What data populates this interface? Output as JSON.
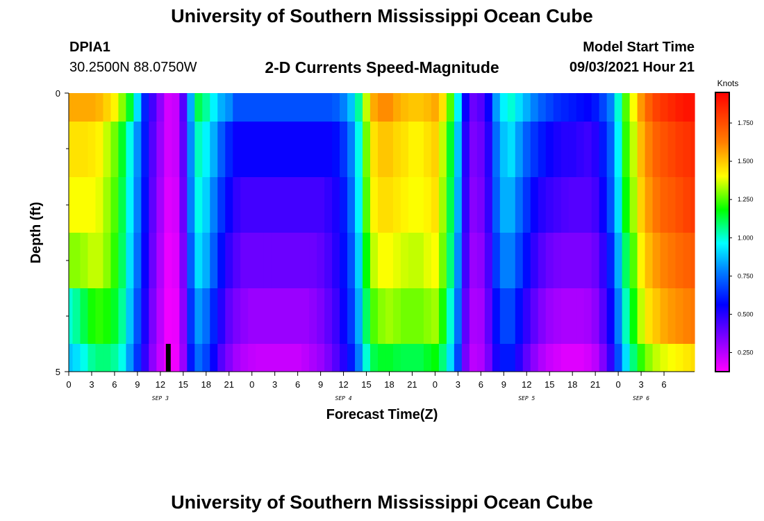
{
  "header": {
    "title": "University of Southern Mississippi Ocean Cube",
    "station_id": "DPIA1",
    "coords": "30.2500N  88.0750W",
    "chart_title": "2-D Currents Speed-Magnitude",
    "model_start_label": "Model Start Time",
    "model_start_value": "09/03/2021 Hour 21"
  },
  "footer": {
    "title": "University of Southern Mississippi Ocean Cube"
  },
  "chart_data": {
    "type": "heatmap",
    "title": "2-D Currents Speed-Magnitude",
    "xlabel": "Forecast Time(Z)",
    "ylabel": "Depth (ft)",
    "y_ticks": [
      "0",
      "5"
    ],
    "ylim": [
      0,
      5
    ],
    "x_tick_labels": [
      "0",
      "3",
      "6",
      "9",
      "12",
      "15",
      "18",
      "21",
      "0",
      "3",
      "6",
      "9",
      "12",
      "15",
      "18",
      "21",
      "0",
      "3",
      "6",
      "9",
      "12",
      "15",
      "18",
      "21",
      "0",
      "3",
      "6"
    ],
    "date_labels": [
      {
        "label": "SEP 3",
        "hour_index": 12
      },
      {
        "label": "SEP 4",
        "hour_index": 36
      },
      {
        "label": "SEP 5",
        "hour_index": 60
      },
      {
        "label": "SEP 6",
        "hour_index": 75
      }
    ],
    "colorbar": {
      "unit": "Knots",
      "min": 0.125,
      "max": 1.95,
      "ticks": [
        "1.750",
        "1.500",
        "1.250",
        "1.000",
        "0.750",
        "0.500",
        "0.250"
      ],
      "tick_values": [
        1.75,
        1.5,
        1.25,
        1.0,
        0.75,
        0.5,
        0.25
      ]
    },
    "model_start_marker_hour": 13,
    "layers": [
      {
        "depth_band": "surface",
        "speed_knots": [
          1.55,
          1.55,
          1.55,
          1.55,
          1.53,
          1.48,
          1.42,
          1.3,
          1.15,
          0.92,
          0.62,
          0.45,
          0.32,
          0.2,
          0.22,
          0.42,
          0.85,
          1.12,
          1.05,
          0.95,
          0.85,
          0.8,
          0.7,
          0.7,
          0.7,
          0.7,
          0.7,
          0.7,
          0.7,
          0.7,
          0.7,
          0.7,
          0.7,
          0.7,
          0.7,
          0.72,
          0.78,
          0.88,
          1.05,
          1.35,
          1.55,
          1.6,
          1.6,
          1.55,
          1.52,
          1.5,
          1.5,
          1.52,
          1.55,
          1.45,
          1.25,
          0.95,
          0.55,
          0.38,
          0.42,
          0.55,
          0.82,
          0.95,
          1.0,
          0.92,
          0.85,
          0.78,
          0.72,
          0.68,
          0.64,
          0.62,
          0.6,
          0.58,
          0.56,
          0.6,
          0.68,
          0.78,
          1.0,
          1.25,
          1.4,
          1.58,
          1.7,
          1.78,
          1.82,
          1.85,
          1.88,
          1.9,
          1.9
        ]
      },
      {
        "depth_band": "1",
        "speed_knots": [
          1.45,
          1.45,
          1.45,
          1.44,
          1.42,
          1.35,
          1.28,
          1.15,
          0.98,
          0.8,
          0.6,
          0.42,
          0.3,
          0.2,
          0.22,
          0.4,
          0.8,
          1.02,
          0.95,
          0.85,
          0.72,
          0.62,
          0.55,
          0.55,
          0.55,
          0.55,
          0.55,
          0.55,
          0.55,
          0.55,
          0.55,
          0.55,
          0.55,
          0.55,
          0.55,
          0.58,
          0.65,
          0.78,
          0.98,
          1.28,
          1.45,
          1.5,
          1.5,
          1.47,
          1.45,
          1.42,
          1.42,
          1.45,
          1.48,
          1.35,
          1.15,
          0.88,
          0.5,
          0.35,
          0.38,
          0.5,
          0.75,
          0.88,
          0.92,
          0.82,
          0.72,
          0.65,
          0.6,
          0.55,
          0.52,
          0.5,
          0.5,
          0.48,
          0.46,
          0.5,
          0.6,
          0.72,
          0.95,
          1.22,
          1.35,
          1.52,
          1.62,
          1.7,
          1.74,
          1.77,
          1.8,
          1.82,
          1.84
        ]
      },
      {
        "depth_band": "2",
        "speed_knots": [
          1.4,
          1.4,
          1.4,
          1.4,
          1.38,
          1.32,
          1.25,
          1.12,
          0.95,
          0.78,
          0.58,
          0.4,
          0.28,
          0.18,
          0.2,
          0.38,
          0.78,
          0.98,
          0.9,
          0.78,
          0.65,
          0.55,
          0.48,
          0.45,
          0.45,
          0.45,
          0.45,
          0.45,
          0.45,
          0.45,
          0.45,
          0.45,
          0.45,
          0.45,
          0.48,
          0.52,
          0.6,
          0.74,
          0.95,
          1.25,
          1.42,
          1.46,
          1.46,
          1.44,
          1.42,
          1.4,
          1.4,
          1.42,
          1.45,
          1.32,
          1.12,
          0.85,
          0.48,
          0.33,
          0.36,
          0.48,
          0.72,
          0.85,
          0.85,
          0.75,
          0.65,
          0.55,
          0.5,
          0.47,
          0.45,
          0.43,
          0.42,
          0.42,
          0.42,
          0.45,
          0.55,
          0.7,
          0.92,
          1.18,
          1.32,
          1.48,
          1.58,
          1.65,
          1.7,
          1.72,
          1.75,
          1.78,
          1.8
        ]
      },
      {
        "depth_band": "3",
        "speed_knots": [
          1.3,
          1.3,
          1.32,
          1.35,
          1.35,
          1.3,
          1.22,
          1.1,
          0.92,
          0.75,
          0.55,
          0.38,
          0.26,
          0.16,
          0.18,
          0.35,
          0.72,
          0.92,
          0.85,
          0.72,
          0.58,
          0.48,
          0.42,
          0.38,
          0.38,
          0.38,
          0.38,
          0.38,
          0.38,
          0.38,
          0.38,
          0.38,
          0.38,
          0.4,
          0.44,
          0.5,
          0.58,
          0.7,
          0.9,
          1.18,
          1.35,
          1.4,
          1.4,
          1.38,
          1.36,
          1.35,
          1.35,
          1.38,
          1.4,
          1.28,
          1.08,
          0.8,
          0.45,
          0.3,
          0.32,
          0.44,
          0.66,
          0.78,
          0.78,
          0.68,
          0.58,
          0.48,
          0.42,
          0.38,
          0.36,
          0.35,
          0.35,
          0.35,
          0.35,
          0.38,
          0.48,
          0.62,
          0.85,
          1.1,
          1.25,
          1.42,
          1.52,
          1.58,
          1.62,
          1.65,
          1.68,
          1.7,
          1.72
        ]
      },
      {
        "depth_band": "4",
        "speed_knots": [
          1.0,
          1.05,
          1.12,
          1.2,
          1.22,
          1.2,
          1.15,
          1.05,
          0.88,
          0.7,
          0.52,
          0.35,
          0.24,
          0.15,
          0.16,
          0.32,
          0.65,
          0.82,
          0.75,
          0.62,
          0.5,
          0.4,
          0.35,
          0.32,
          0.3,
          0.3,
          0.3,
          0.3,
          0.3,
          0.3,
          0.3,
          0.3,
          0.32,
          0.35,
          0.4,
          0.46,
          0.55,
          0.66,
          0.85,
          1.1,
          1.25,
          1.3,
          1.32,
          1.3,
          1.28,
          1.28,
          1.28,
          1.3,
          1.32,
          1.2,
          1.0,
          0.75,
          0.4,
          0.27,
          0.28,
          0.4,
          0.58,
          0.68,
          0.68,
          0.58,
          0.48,
          0.4,
          0.34,
          0.3,
          0.28,
          0.27,
          0.27,
          0.27,
          0.28,
          0.32,
          0.42,
          0.55,
          0.78,
          1.02,
          1.18,
          1.35,
          1.45,
          1.5,
          1.55,
          1.58,
          1.6,
          1.62,
          1.64
        ]
      },
      {
        "depth_band": "bottom",
        "speed_knots": [
          0.88,
          0.92,
          0.98,
          1.05,
          1.08,
          1.08,
          1.05,
          0.98,
          0.82,
          0.65,
          0.48,
          0.32,
          0.22,
          0.14,
          0.15,
          0.3,
          0.6,
          0.75,
          0.68,
          0.55,
          0.42,
          0.34,
          0.28,
          0.25,
          0.23,
          0.22,
          0.22,
          0.22,
          0.22,
          0.22,
          0.22,
          0.24,
          0.27,
          0.3,
          0.35,
          0.42,
          0.5,
          0.6,
          0.78,
          1.0,
          1.12,
          1.15,
          1.15,
          1.13,
          1.12,
          1.12,
          1.12,
          1.15,
          1.18,
          1.08,
          0.92,
          0.68,
          0.36,
          0.24,
          0.26,
          0.36,
          0.52,
          0.6,
          0.6,
          0.5,
          0.4,
          0.32,
          0.26,
          0.22,
          0.2,
          0.18,
          0.18,
          0.18,
          0.2,
          0.24,
          0.34,
          0.48,
          0.7,
          0.92,
          1.08,
          1.22,
          1.3,
          1.35,
          1.38,
          1.4,
          1.42,
          1.44,
          1.46
        ]
      }
    ]
  }
}
